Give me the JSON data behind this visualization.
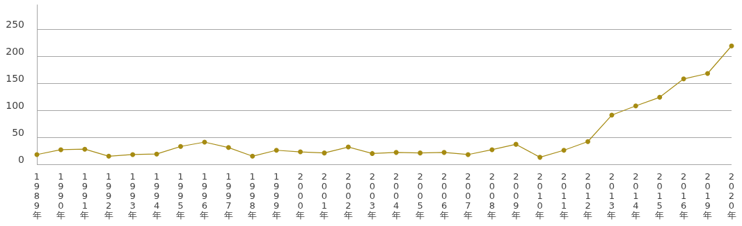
{
  "chart_data": {
    "type": "line",
    "categories": [
      "1989年",
      "1990年",
      "1991年",
      "1992年",
      "1993年",
      "1994年",
      "1995年",
      "1996年",
      "1997年",
      "1998年",
      "1999年",
      "2000年",
      "2001年",
      "2002年",
      "2003年",
      "2004年",
      "2005年",
      "2006年",
      "2007年",
      "2008年",
      "2009年",
      "2010年",
      "2011年",
      "2012年",
      "2013年",
      "2014年",
      "2015年",
      "2016年",
      "2019年",
      "2020年"
    ],
    "series": [
      {
        "color": "#a68b12",
        "values": [
          18,
          27,
          28,
          15,
          18,
          19,
          33,
          41,
          31,
          15,
          26,
          23,
          21,
          32,
          20,
          22,
          21,
          22,
          18,
          27,
          37,
          13,
          26,
          42,
          91,
          108,
          124,
          158,
          168,
          219
        ]
      }
    ],
    "ylim": [
      0,
      295
    ],
    "yticks": [
      0,
      50,
      100,
      150,
      200,
      250
    ],
    "grid": "y",
    "marker": "circle",
    "line_style": "solid"
  }
}
